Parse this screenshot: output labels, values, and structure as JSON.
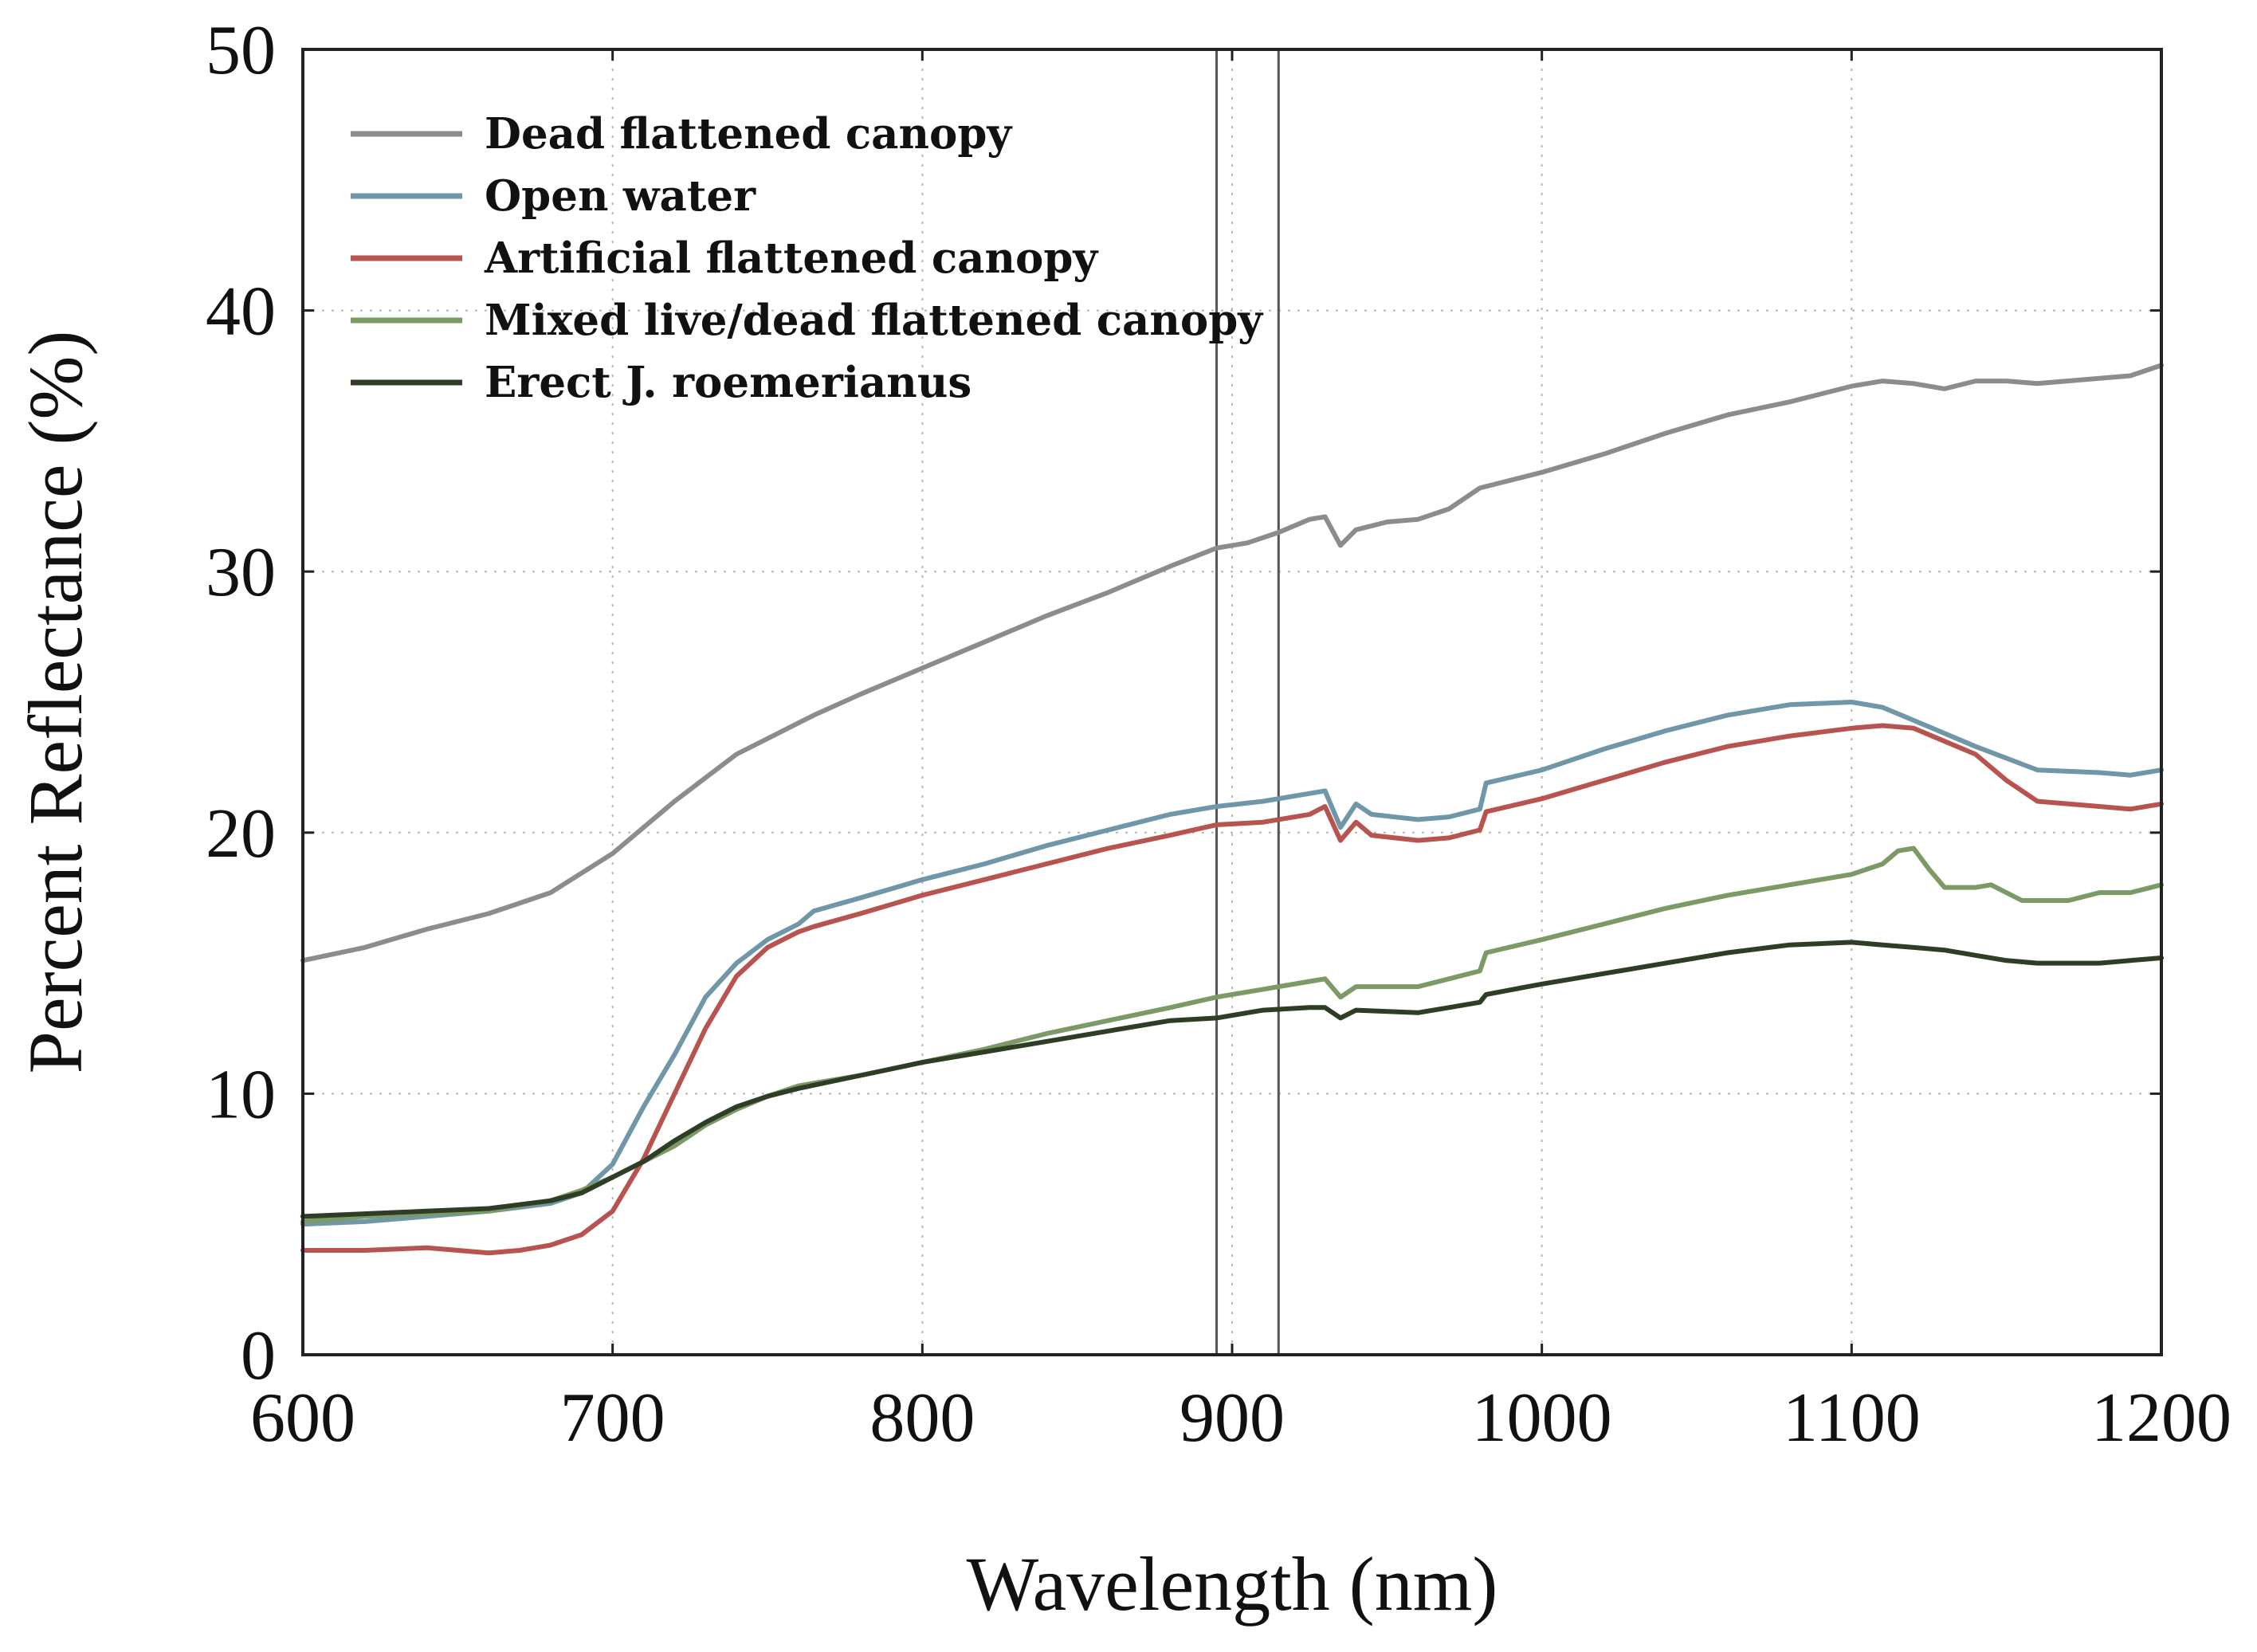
{
  "chart_data": {
    "type": "line",
    "xlabel": "Wavelength (nm)",
    "ylabel": "Percent Reflectance (%)",
    "xlim": [
      600,
      1200
    ],
    "ylim": [
      0,
      50
    ],
    "xticks": [
      600,
      700,
      800,
      900,
      1000,
      1100,
      1200
    ],
    "yticks": [
      0,
      10,
      20,
      30,
      40,
      50
    ],
    "grid": true,
    "legend_position": "top-left",
    "vertical_lines": [
      895,
      915
    ],
    "series": [
      {
        "name": "Dead flattened canopy",
        "color": "#8c8c8c",
        "points": [
          [
            600,
            15.1
          ],
          [
            620,
            15.6
          ],
          [
            640,
            16.3
          ],
          [
            660,
            16.9
          ],
          [
            680,
            17.7
          ],
          [
            700,
            19.2
          ],
          [
            720,
            21.2
          ],
          [
            740,
            23.0
          ],
          [
            760,
            24.2
          ],
          [
            765,
            24.5
          ],
          [
            780,
            25.3
          ],
          [
            800,
            26.3
          ],
          [
            820,
            27.3
          ],
          [
            840,
            28.3
          ],
          [
            860,
            29.2
          ],
          [
            880,
            30.2
          ],
          [
            895,
            30.9
          ],
          [
            905,
            31.1
          ],
          [
            915,
            31.5
          ],
          [
            925,
            32.0
          ],
          [
            930,
            32.1
          ],
          [
            935,
            31.0
          ],
          [
            940,
            31.6
          ],
          [
            950,
            31.9
          ],
          [
            960,
            32.0
          ],
          [
            970,
            32.4
          ],
          [
            980,
            33.2
          ],
          [
            1000,
            33.8
          ],
          [
            1020,
            34.5
          ],
          [
            1040,
            35.3
          ],
          [
            1060,
            36.0
          ],
          [
            1080,
            36.5
          ],
          [
            1100,
            37.1
          ],
          [
            1110,
            37.3
          ],
          [
            1120,
            37.2
          ],
          [
            1130,
            37.0
          ],
          [
            1140,
            37.3
          ],
          [
            1150,
            37.3
          ],
          [
            1160,
            37.2
          ],
          [
            1180,
            37.4
          ],
          [
            1190,
            37.5
          ],
          [
            1200,
            37.9
          ]
        ]
      },
      {
        "name": "Open water",
        "color": "#6f97a8",
        "points": [
          [
            600,
            5.0
          ],
          [
            620,
            5.1
          ],
          [
            640,
            5.3
          ],
          [
            660,
            5.5
          ],
          [
            680,
            5.8
          ],
          [
            690,
            6.2
          ],
          [
            700,
            7.3
          ],
          [
            710,
            9.5
          ],
          [
            720,
            11.5
          ],
          [
            730,
            13.7
          ],
          [
            740,
            15.0
          ],
          [
            750,
            15.9
          ],
          [
            760,
            16.5
          ],
          [
            765,
            17.0
          ],
          [
            780,
            17.5
          ],
          [
            800,
            18.2
          ],
          [
            820,
            18.8
          ],
          [
            840,
            19.5
          ],
          [
            860,
            20.1
          ],
          [
            880,
            20.7
          ],
          [
            895,
            21.0
          ],
          [
            910,
            21.2
          ],
          [
            925,
            21.5
          ],
          [
            930,
            21.6
          ],
          [
            935,
            20.2
          ],
          [
            940,
            21.1
          ],
          [
            945,
            20.7
          ],
          [
            960,
            20.5
          ],
          [
            970,
            20.6
          ],
          [
            980,
            20.9
          ],
          [
            982,
            21.9
          ],
          [
            1000,
            22.4
          ],
          [
            1020,
            23.2
          ],
          [
            1040,
            23.9
          ],
          [
            1060,
            24.5
          ],
          [
            1080,
            24.9
          ],
          [
            1100,
            25.0
          ],
          [
            1110,
            24.8
          ],
          [
            1120,
            24.3
          ],
          [
            1140,
            23.3
          ],
          [
            1160,
            22.4
          ],
          [
            1180,
            22.3
          ],
          [
            1190,
            22.2
          ],
          [
            1200,
            22.4
          ]
        ]
      },
      {
        "name": "Artificial flattened canopy",
        "color": "#b85450",
        "points": [
          [
            600,
            4.0
          ],
          [
            620,
            4.0
          ],
          [
            640,
            4.1
          ],
          [
            660,
            3.9
          ],
          [
            670,
            4.0
          ],
          [
            680,
            4.2
          ],
          [
            690,
            4.6
          ],
          [
            700,
            5.5
          ],
          [
            710,
            7.5
          ],
          [
            720,
            10.0
          ],
          [
            730,
            12.5
          ],
          [
            740,
            14.5
          ],
          [
            750,
            15.6
          ],
          [
            760,
            16.2
          ],
          [
            765,
            16.4
          ],
          [
            780,
            16.9
          ],
          [
            800,
            17.6
          ],
          [
            820,
            18.2
          ],
          [
            840,
            18.8
          ],
          [
            860,
            19.4
          ],
          [
            880,
            19.9
          ],
          [
            895,
            20.3
          ],
          [
            910,
            20.4
          ],
          [
            925,
            20.7
          ],
          [
            930,
            21.0
          ],
          [
            935,
            19.7
          ],
          [
            940,
            20.4
          ],
          [
            945,
            19.9
          ],
          [
            960,
            19.7
          ],
          [
            970,
            19.8
          ],
          [
            980,
            20.1
          ],
          [
            982,
            20.8
          ],
          [
            1000,
            21.3
          ],
          [
            1020,
            22.0
          ],
          [
            1040,
            22.7
          ],
          [
            1060,
            23.3
          ],
          [
            1080,
            23.7
          ],
          [
            1100,
            24.0
          ],
          [
            1110,
            24.1
          ],
          [
            1120,
            24.0
          ],
          [
            1140,
            23.0
          ],
          [
            1150,
            22.0
          ],
          [
            1160,
            21.2
          ],
          [
            1180,
            21.0
          ],
          [
            1190,
            20.9
          ],
          [
            1200,
            21.1
          ]
        ]
      },
      {
        "name": "Mixed live/dead flattened canopy",
        "color": "#7c9a66",
        "points": [
          [
            600,
            5.1
          ],
          [
            620,
            5.3
          ],
          [
            640,
            5.4
          ],
          [
            660,
            5.5
          ],
          [
            680,
            5.9
          ],
          [
            690,
            6.3
          ],
          [
            700,
            6.8
          ],
          [
            710,
            7.4
          ],
          [
            720,
            8.0
          ],
          [
            730,
            8.8
          ],
          [
            740,
            9.4
          ],
          [
            750,
            9.9
          ],
          [
            760,
            10.3
          ],
          [
            780,
            10.7
          ],
          [
            800,
            11.2
          ],
          [
            820,
            11.7
          ],
          [
            840,
            12.3
          ],
          [
            860,
            12.8
          ],
          [
            880,
            13.3
          ],
          [
            895,
            13.7
          ],
          [
            910,
            14.0
          ],
          [
            925,
            14.3
          ],
          [
            930,
            14.4
          ],
          [
            935,
            13.7
          ],
          [
            940,
            14.1
          ],
          [
            960,
            14.1
          ],
          [
            970,
            14.4
          ],
          [
            980,
            14.7
          ],
          [
            982,
            15.4
          ],
          [
            1000,
            15.9
          ],
          [
            1020,
            16.5
          ],
          [
            1040,
            17.1
          ],
          [
            1060,
            17.6
          ],
          [
            1080,
            18.0
          ],
          [
            1100,
            18.4
          ],
          [
            1110,
            18.8
          ],
          [
            1115,
            19.3
          ],
          [
            1120,
            19.4
          ],
          [
            1125,
            18.6
          ],
          [
            1130,
            17.9
          ],
          [
            1140,
            17.9
          ],
          [
            1145,
            18.0
          ],
          [
            1155,
            17.4
          ],
          [
            1170,
            17.4
          ],
          [
            1180,
            17.7
          ],
          [
            1190,
            17.7
          ],
          [
            1200,
            18.0
          ]
        ]
      },
      {
        "name": "Erect J. roemerianus",
        "color": "#2e3d26",
        "points": [
          [
            600,
            5.3
          ],
          [
            620,
            5.4
          ],
          [
            640,
            5.5
          ],
          [
            660,
            5.6
          ],
          [
            680,
            5.9
          ],
          [
            690,
            6.2
          ],
          [
            700,
            6.8
          ],
          [
            710,
            7.4
          ],
          [
            720,
            8.2
          ],
          [
            730,
            8.9
          ],
          [
            740,
            9.5
          ],
          [
            750,
            9.9
          ],
          [
            760,
            10.2
          ],
          [
            780,
            10.7
          ],
          [
            800,
            11.2
          ],
          [
            820,
            11.6
          ],
          [
            840,
            12.0
          ],
          [
            860,
            12.4
          ],
          [
            880,
            12.8
          ],
          [
            895,
            12.9
          ],
          [
            910,
            13.2
          ],
          [
            925,
            13.3
          ],
          [
            930,
            13.3
          ],
          [
            935,
            12.9
          ],
          [
            940,
            13.2
          ],
          [
            960,
            13.1
          ],
          [
            970,
            13.3
          ],
          [
            980,
            13.5
          ],
          [
            982,
            13.8
          ],
          [
            1000,
            14.2
          ],
          [
            1020,
            14.6
          ],
          [
            1040,
            15.0
          ],
          [
            1060,
            15.4
          ],
          [
            1080,
            15.7
          ],
          [
            1100,
            15.8
          ],
          [
            1110,
            15.7
          ],
          [
            1120,
            15.6
          ],
          [
            1130,
            15.5
          ],
          [
            1140,
            15.3
          ],
          [
            1150,
            15.1
          ],
          [
            1160,
            15.0
          ],
          [
            1180,
            15.0
          ],
          [
            1190,
            15.1
          ],
          [
            1200,
            15.2
          ]
        ]
      }
    ]
  }
}
